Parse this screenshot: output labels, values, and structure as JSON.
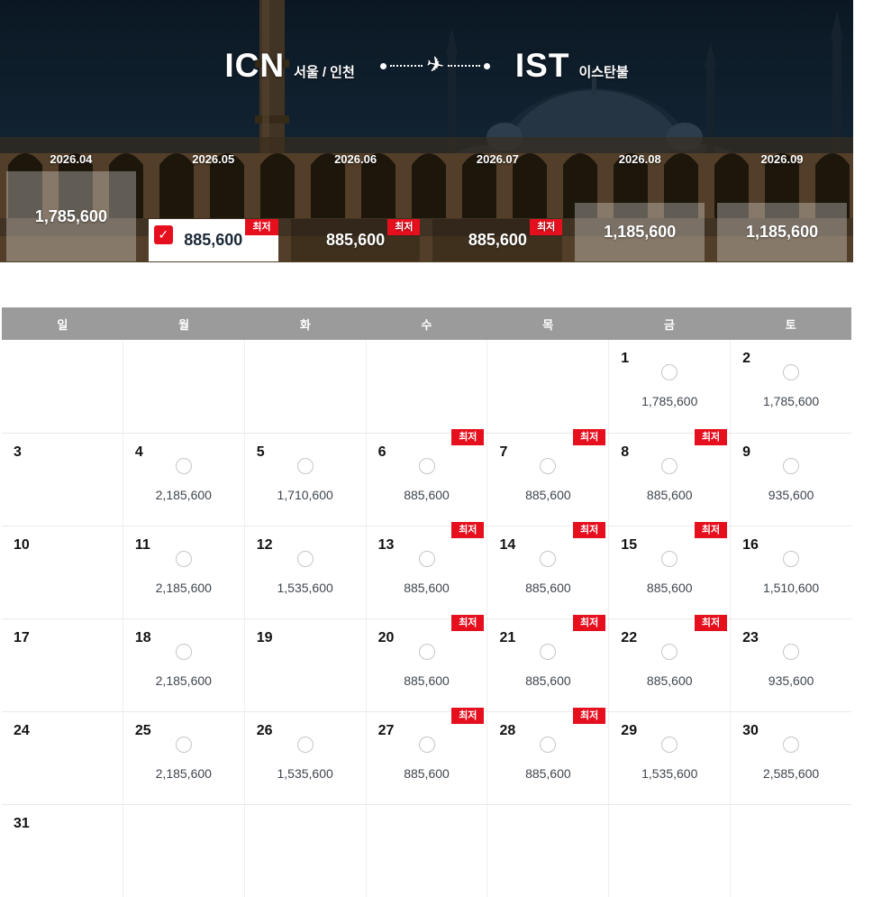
{
  "colors": {
    "accent": "#e60f1e",
    "weekday_bar": "#9b9b9b"
  },
  "icons": {
    "plane": "✈",
    "check": "✓"
  },
  "labels": {
    "lowest": "최저"
  },
  "route": {
    "origin_code": "ICN",
    "origin_city": "서울 / 인천",
    "destination_code": "IST",
    "destination_city": "이스탄불"
  },
  "months": [
    {
      "label": "2026.04",
      "price": "1,785,600",
      "variant": "tall-light",
      "badge": false,
      "checked": false
    },
    {
      "label": "2026.05",
      "price": "885,600",
      "variant": "selected",
      "badge": true,
      "checked": true
    },
    {
      "label": "2026.06",
      "price": "885,600",
      "variant": "dark",
      "badge": true,
      "checked": false
    },
    {
      "label": "2026.07",
      "price": "885,600",
      "variant": "dark",
      "badge": true,
      "checked": false
    },
    {
      "label": "2026.08",
      "price": "1,185,600",
      "variant": "light",
      "badge": false,
      "checked": false
    },
    {
      "label": "2026.09",
      "price": "1,185,600",
      "variant": "light",
      "badge": false,
      "checked": false
    }
  ],
  "calendar": {
    "weekdays": [
      "일",
      "월",
      "화",
      "수",
      "목",
      "금",
      "토"
    ],
    "weeks": [
      [
        null,
        null,
        null,
        null,
        null,
        {
          "day": 1,
          "price": "1,785,600",
          "badge": false
        },
        {
          "day": 2,
          "price": "1,785,600",
          "badge": false
        }
      ],
      [
        {
          "day": 3
        },
        {
          "day": 4,
          "price": "2,185,600",
          "badge": false
        },
        {
          "day": 5,
          "price": "1,710,600",
          "badge": false
        },
        {
          "day": 6,
          "price": "885,600",
          "badge": true
        },
        {
          "day": 7,
          "price": "885,600",
          "badge": true
        },
        {
          "day": 8,
          "price": "885,600",
          "badge": true
        },
        {
          "day": 9,
          "price": "935,600",
          "badge": false
        }
      ],
      [
        {
          "day": 10
        },
        {
          "day": 11,
          "price": "2,185,600",
          "badge": false
        },
        {
          "day": 12,
          "price": "1,535,600",
          "badge": false
        },
        {
          "day": 13,
          "price": "885,600",
          "badge": true
        },
        {
          "day": 14,
          "price": "885,600",
          "badge": true
        },
        {
          "day": 15,
          "price": "885,600",
          "badge": true
        },
        {
          "day": 16,
          "price": "1,510,600",
          "badge": false
        }
      ],
      [
        {
          "day": 17
        },
        {
          "day": 18,
          "price": "2,185,600",
          "badge": false
        },
        {
          "day": 19
        },
        {
          "day": 20,
          "price": "885,600",
          "badge": true
        },
        {
          "day": 21,
          "price": "885,600",
          "badge": true
        },
        {
          "day": 22,
          "price": "885,600",
          "badge": true
        },
        {
          "day": 23,
          "price": "935,600",
          "badge": false
        }
      ],
      [
        {
          "day": 24
        },
        {
          "day": 25,
          "price": "2,185,600",
          "badge": false
        },
        {
          "day": 26,
          "price": "1,535,600",
          "badge": false
        },
        {
          "day": 27,
          "price": "885,600",
          "badge": true
        },
        {
          "day": 28,
          "price": "885,600",
          "badge": true
        },
        {
          "day": 29,
          "price": "1,535,600",
          "badge": false
        },
        {
          "day": 30,
          "price": "2,585,600",
          "badge": false
        }
      ],
      [
        {
          "day": 31
        },
        null,
        null,
        null,
        null,
        null,
        null
      ]
    ]
  }
}
